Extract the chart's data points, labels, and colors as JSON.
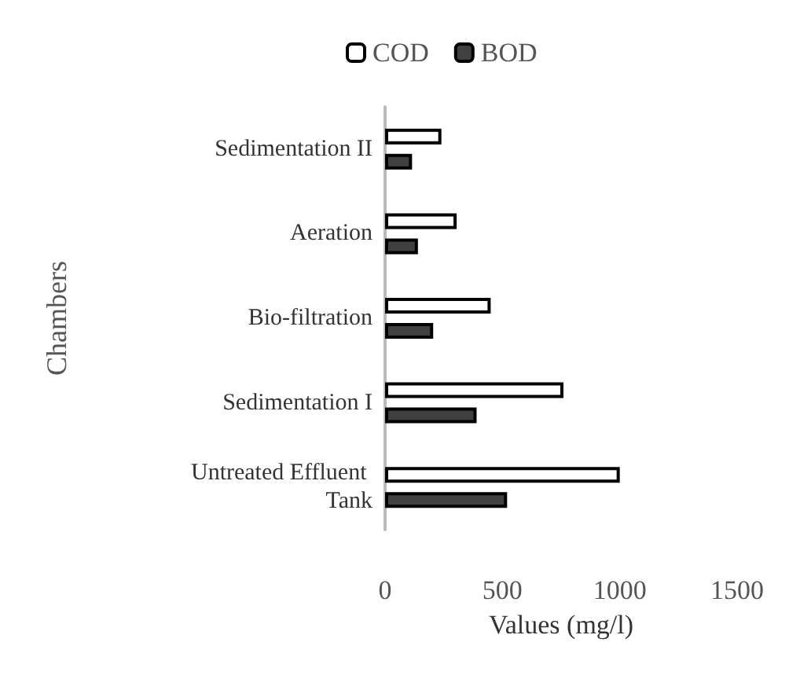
{
  "chart_data": {
    "type": "bar",
    "orientation": "horizontal",
    "xlabel": "Values (mg/l)",
    "ylabel": "Chambers",
    "categories": [
      "Sedimentation II",
      "Aeration",
      "Bio-filtration",
      "Sedimentation I",
      "Untreated Effluent Tank"
    ],
    "series": [
      {
        "name": "COD",
        "color": "#ffffff",
        "values": [
          240,
          305,
          450,
          760,
          1000
        ]
      },
      {
        "name": "BOD",
        "color": "#404040",
        "values": [
          115,
          140,
          205,
          390,
          520
        ]
      }
    ],
    "xlim": [
      0,
      1500
    ],
    "xticks": [
      0,
      500,
      1000,
      1500
    ],
    "grid": false,
    "legend": "top"
  }
}
